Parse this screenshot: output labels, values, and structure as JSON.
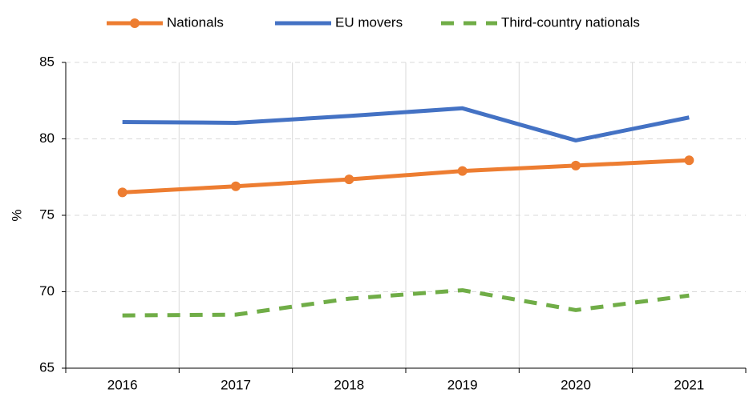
{
  "chart_data": {
    "type": "line",
    "y_label": "%",
    "categories": [
      "2016",
      "2017",
      "2018",
      "2019",
      "2020",
      "2021"
    ],
    "series": [
      {
        "name": "Nationals",
        "color": "#ed7d31",
        "marker": true,
        "dashed": false,
        "values": [
          76.5,
          76.9,
          77.35,
          77.9,
          78.25,
          78.6
        ]
      },
      {
        "name": "EU movers",
        "color": "#4472c4",
        "marker": false,
        "dashed": false,
        "values": [
          81.1,
          81.05,
          81.5,
          82.0,
          79.9,
          81.4
        ]
      },
      {
        "name": "Third-country nationals",
        "color": "#70ad47",
        "marker": false,
        "dashed": true,
        "values": [
          68.45,
          68.5,
          69.55,
          70.1,
          68.8,
          69.75
        ]
      }
    ],
    "ylim": [
      65,
      85
    ],
    "yticks": [
      65,
      70,
      75,
      80,
      85
    ],
    "grid": true
  }
}
